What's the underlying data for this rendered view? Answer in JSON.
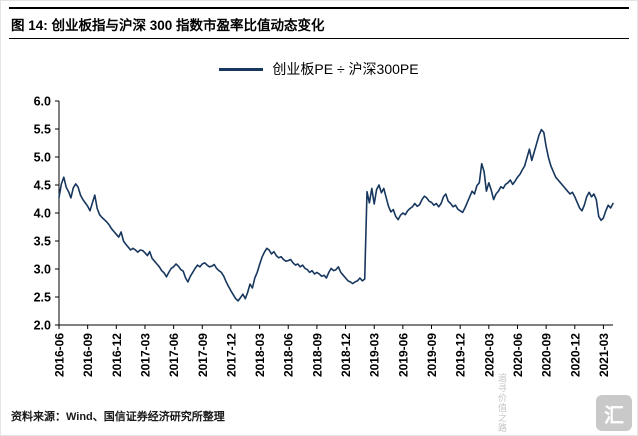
{
  "page": {
    "title": "图 14: 创业板指与沪深 300 指数市盈率比值动态变化",
    "source_note": "资料来源：Wind、国信证券经济研究所整理",
    "watermark_text": "追寻价值之路",
    "watermark_logo_text": "汇"
  },
  "colors": {
    "line": "#17375E",
    "axis": "#000000"
  },
  "chart_data": {
    "type": "line",
    "title": "创业板指与沪深300指数市盈率比值动态变化",
    "legend": [
      "创业板PE ÷ 沪深300PE"
    ],
    "legend_position": "top",
    "grid": false,
    "ylim": [
      2.0,
      6.0
    ],
    "y_tick_step": 0.5,
    "xlabel": "",
    "ylabel": "",
    "x_tick_labels": [
      "2016-06",
      "2016-09",
      "2016-12",
      "2017-03",
      "2017-06",
      "2017-09",
      "2017-12",
      "2018-03",
      "2018-06",
      "2018-09",
      "2018-12",
      "2019-03",
      "2019-06",
      "2019-09",
      "2019-12",
      "2020-03",
      "2020-06",
      "2020-09",
      "2020-12",
      "2021-03"
    ],
    "label_every": 12,
    "series": [
      {
        "name": "创业板PE ÷ 沪深300PE",
        "values": [
          4.28,
          4.52,
          4.64,
          4.46,
          4.38,
          4.27,
          4.45,
          4.52,
          4.46,
          4.32,
          4.24,
          4.18,
          4.12,
          4.04,
          4.18,
          4.32,
          4.08,
          3.97,
          3.92,
          3.88,
          3.84,
          3.79,
          3.72,
          3.67,
          3.62,
          3.57,
          3.66,
          3.5,
          3.44,
          3.39,
          3.34,
          3.37,
          3.34,
          3.3,
          3.34,
          3.33,
          3.29,
          3.24,
          3.31,
          3.19,
          3.14,
          3.09,
          3.04,
          2.97,
          2.93,
          2.86,
          2.94,
          3.01,
          3.04,
          3.09,
          3.05,
          2.99,
          2.96,
          2.84,
          2.77,
          2.87,
          2.94,
          3.01,
          3.07,
          3.04,
          3.09,
          3.11,
          3.07,
          3.04,
          3.05,
          3.08,
          3.01,
          2.97,
          2.94,
          2.87,
          2.77,
          2.69,
          2.61,
          2.54,
          2.47,
          2.43,
          2.49,
          2.55,
          2.47,
          2.58,
          2.73,
          2.66,
          2.84,
          2.94,
          3.08,
          3.21,
          3.3,
          3.37,
          3.34,
          3.27,
          3.31,
          3.24,
          3.2,
          3.22,
          3.17,
          3.14,
          3.15,
          3.17,
          3.11,
          3.07,
          3.09,
          3.04,
          3.07,
          3.01,
          2.99,
          2.94,
          2.97,
          2.91,
          2.94,
          2.91,
          2.87,
          2.89,
          2.84,
          2.94,
          3.01,
          2.97,
          2.99,
          3.04,
          2.94,
          2.89,
          2.84,
          2.79,
          2.77,
          2.74,
          2.77,
          2.79,
          2.84,
          2.79,
          2.82,
          4.38,
          4.18,
          4.44,
          4.16,
          4.42,
          4.5,
          4.36,
          4.44,
          4.28,
          4.12,
          4.02,
          4.06,
          3.94,
          3.88,
          3.96,
          4.0,
          3.97,
          4.04,
          4.08,
          4.11,
          4.17,
          4.12,
          4.15,
          4.24,
          4.3,
          4.27,
          4.21,
          4.19,
          4.14,
          4.17,
          4.11,
          4.17,
          4.29,
          4.34,
          4.21,
          4.17,
          4.11,
          4.14,
          4.07,
          4.04,
          4.01,
          4.09,
          4.19,
          4.29,
          4.39,
          4.34,
          4.49,
          4.54,
          4.88,
          4.74,
          4.39,
          4.54,
          4.41,
          4.24,
          4.34,
          4.39,
          4.47,
          4.44,
          4.51,
          4.54,
          4.59,
          4.51,
          4.57,
          4.64,
          4.69,
          4.77,
          4.84,
          4.99,
          5.14,
          4.94,
          5.09,
          5.24,
          5.39,
          5.49,
          5.44,
          5.19,
          4.99,
          4.84,
          4.74,
          4.64,
          4.59,
          4.54,
          4.49,
          4.44,
          4.39,
          4.34,
          4.37,
          4.29,
          4.19,
          4.09,
          4.04,
          4.14,
          4.29,
          4.37,
          4.29,
          4.34,
          4.24,
          3.94,
          3.87,
          3.91,
          4.04,
          4.14,
          4.09,
          4.17
        ]
      }
    ]
  }
}
